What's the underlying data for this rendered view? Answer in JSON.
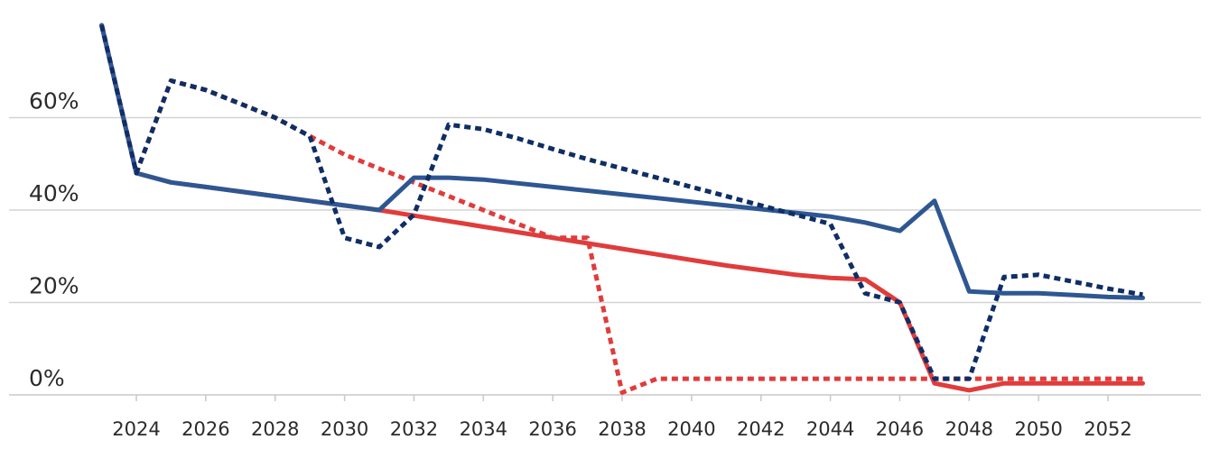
{
  "chart_data": {
    "type": "line",
    "title": "",
    "xlabel": "",
    "ylabel": "",
    "xlim": [
      2022.6,
      2054.2
    ],
    "ylim": [
      0,
      80
    ],
    "grid": true,
    "x_ticks": [
      "2024",
      "2026",
      "2028",
      "2030",
      "2032",
      "2034",
      "2036",
      "2038",
      "2040",
      "2042",
      "2044",
      "2046",
      "2048",
      "2050",
      "2052"
    ],
    "y_ticks": [
      "0%",
      "20%",
      "40%",
      "60%"
    ],
    "series": [
      {
        "style": "solid",
        "color": "#e03c3c",
        "x": [
          2023,
          2024,
          2025,
          2026,
          2027,
          2028,
          2029,
          2030,
          2031,
          2032,
          2033,
          2034,
          2035,
          2036,
          2037,
          2038,
          2039,
          2040,
          2041,
          2042,
          2043,
          2044,
          2045,
          2046,
          2047,
          2048,
          2049,
          2050,
          2051,
          2052,
          2053
        ],
        "y": [
          80,
          48,
          46,
          45,
          44,
          43,
          42,
          41,
          40,
          38.8,
          37.6,
          36.4,
          35.2,
          34,
          32.8,
          31.6,
          30.4,
          29.2,
          28,
          27,
          26,
          25.3,
          25,
          20,
          2.5,
          1,
          2.5,
          2.5,
          2.5,
          2.5,
          2.5
        ]
      },
      {
        "style": "dotted",
        "color": "#e03c3c",
        "x": [
          2023,
          2024,
          2025,
          2026,
          2027,
          2028,
          2029,
          2030,
          2031,
          2032,
          2033,
          2034,
          2035,
          2036,
          2037,
          2038,
          2039,
          2040,
          2041,
          2042,
          2043,
          2044,
          2045,
          2046,
          2047,
          2048,
          2049,
          2050,
          2051,
          2052,
          2053
        ],
        "y": [
          80,
          48,
          68,
          66,
          63,
          60,
          56,
          52,
          49,
          46,
          43,
          40,
          37,
          34,
          34,
          0.5,
          3.5,
          3.5,
          3.5,
          3.5,
          3.5,
          3.5,
          3.5,
          3.5,
          3.5,
          3.5,
          3.5,
          3.5,
          3.5,
          3.5,
          3.5
        ]
      },
      {
        "style": "solid",
        "color": "#2e5792",
        "x": [
          2023,
          2024,
          2025,
          2026,
          2027,
          2028,
          2029,
          2030,
          2031,
          2032,
          2033,
          2034,
          2035,
          2036,
          2037,
          2038,
          2039,
          2040,
          2041,
          2042,
          2043,
          2044,
          2045,
          2046,
          2047,
          2048,
          2049,
          2050,
          2051,
          2052,
          2053
        ],
        "y": [
          80,
          48,
          46,
          45,
          44,
          43,
          42,
          41,
          40,
          47,
          47,
          46.6,
          45.8,
          45,
          44.2,
          43.4,
          42.6,
          41.8,
          41,
          40.2,
          39.4,
          38.6,
          37.3,
          35.5,
          42,
          22.4,
          22,
          22,
          21.6,
          21.2,
          21
        ]
      },
      {
        "style": "dotted",
        "color": "#0f2e66",
        "x": [
          2023,
          2024,
          2025,
          2026,
          2027,
          2028,
          2029,
          2030,
          2031,
          2032,
          2033,
          2034,
          2035,
          2036,
          2037,
          2038,
          2039,
          2040,
          2041,
          2042,
          2043,
          2044,
          2045,
          2046,
          2047,
          2048,
          2049,
          2050,
          2051,
          2052,
          2053
        ],
        "y": [
          80,
          48,
          68,
          66,
          63,
          60,
          56,
          34,
          32,
          39,
          58.5,
          57.5,
          55.5,
          53.2,
          51,
          49,
          47,
          45,
          43,
          41,
          39,
          37,
          22,
          20,
          3.5,
          3.5,
          25.5,
          26,
          24.5,
          23,
          21.7
        ]
      }
    ]
  }
}
